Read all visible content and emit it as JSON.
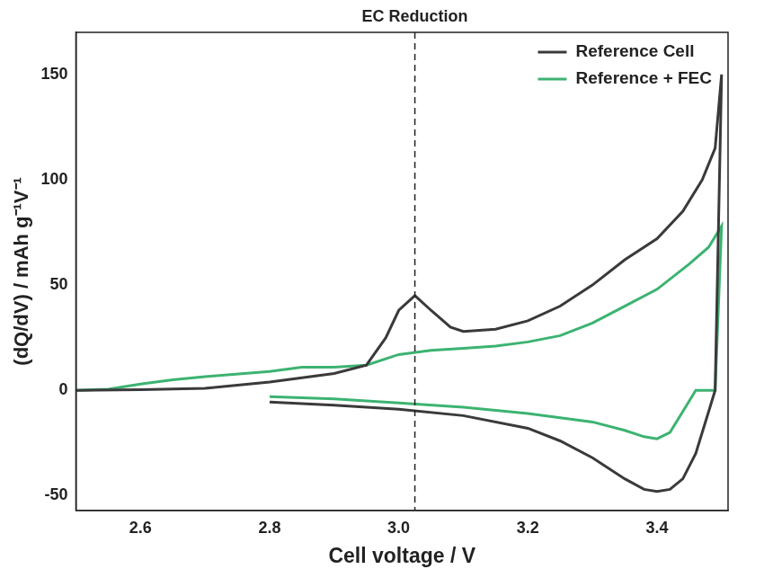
{
  "chart_data": {
    "type": "line",
    "x_label": "Cell voltage / V",
    "y_label": "(dQ/dV) / mAh g⁻¹V⁻¹",
    "annotation": {
      "text": "EC Reduction",
      "x": 3.025,
      "line_style": "dashed"
    },
    "xlim": [
      2.5,
      3.51
    ],
    "xticks": [
      2.6,
      2.8,
      {
        "value": 3,
        "label": "3.0"
      },
      3.2,
      3.4
    ],
    "ylim": [
      -57,
      170
    ],
    "yticks": [
      -50,
      0,
      50,
      100,
      150
    ],
    "grid": false,
    "legend": "upper right",
    "series": [
      {
        "name": "Reference Cell",
        "color": "#3a3a3a",
        "line_style": "solid",
        "x": [
          2.5,
          2.6,
          2.7,
          2.8,
          2.9,
          2.95,
          2.98,
          3.0,
          3.025,
          3.05,
          3.08,
          3.1,
          3.15,
          3.2,
          3.25,
          3.3,
          3.35,
          3.4,
          3.44,
          3.47,
          3.49,
          3.5,
          3.49,
          3.48,
          3.46,
          3.44,
          3.42,
          3.4,
          3.38,
          3.35,
          3.3,
          3.25,
          3.2,
          3.1,
          3.0,
          2.9,
          2.8
        ],
        "values": [
          0,
          0.3,
          1,
          4,
          8,
          12,
          25,
          38,
          45,
          38,
          30,
          28,
          29,
          33,
          40,
          50,
          62,
          72,
          85,
          100,
          115,
          150,
          0,
          -10,
          -30,
          -42,
          -47,
          -48,
          -47,
          -42,
          -32,
          -24,
          -18,
          -12,
          -9,
          -7,
          -5.5
        ]
      },
      {
        "name": "Reference + FEC",
        "color": "#3cb371",
        "line_style": "solid",
        "x": [
          2.5,
          2.55,
          2.6,
          2.65,
          2.7,
          2.8,
          2.85,
          2.9,
          2.95,
          3.0,
          3.05,
          3.1,
          3.15,
          3.2,
          3.25,
          3.3,
          3.35,
          3.4,
          3.45,
          3.48,
          3.5,
          3.49,
          3.46,
          3.44,
          3.42,
          3.4,
          3.38,
          3.35,
          3.3,
          3.2,
          3.1,
          3.0,
          2.9,
          2.8
        ],
        "values": [
          0,
          0.5,
          3,
          5,
          6.5,
          9,
          11,
          11,
          12,
          17,
          19,
          20,
          21,
          23,
          26,
          32,
          40,
          48,
          60,
          68,
          78,
          0,
          0,
          -10,
          -20,
          -23,
          -22,
          -19,
          -15,
          -11,
          -8,
          -6,
          -4,
          -3
        ]
      }
    ]
  }
}
